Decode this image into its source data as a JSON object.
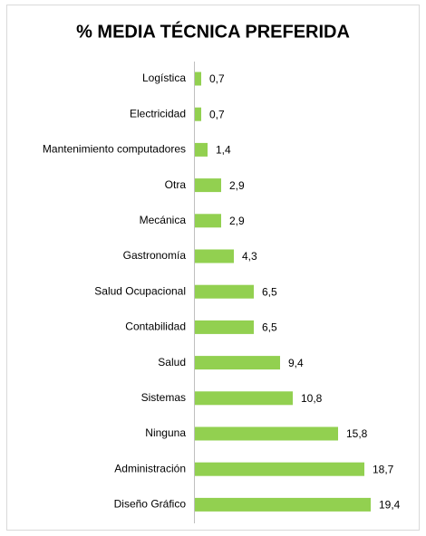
{
  "chart_data": {
    "type": "bar",
    "orientation": "horizontal",
    "title": "% MEDIA TÉCNICA PREFERIDA",
    "categories": [
      "Logística",
      "Electricidad",
      "Mantenimiento computadores",
      "Otra",
      "Mecánica",
      "Gastronomía",
      "Salud Ocupacional",
      "Contabilidad",
      "Salud",
      "Sistemas",
      "Ninguna",
      "Administración",
      "Diseño Gráfico"
    ],
    "values": [
      0.7,
      0.7,
      1.4,
      2.9,
      2.9,
      4.3,
      6.5,
      6.5,
      9.4,
      10.8,
      15.8,
      18.7,
      19.4
    ],
    "value_labels": [
      "0,7",
      "0,7",
      "1,4",
      "2,9",
      "2,9",
      "4,3",
      "6,5",
      "6,5",
      "9,4",
      "10,8",
      "15,8",
      "18,7",
      "19,4"
    ],
    "color": "#92d050"
  }
}
